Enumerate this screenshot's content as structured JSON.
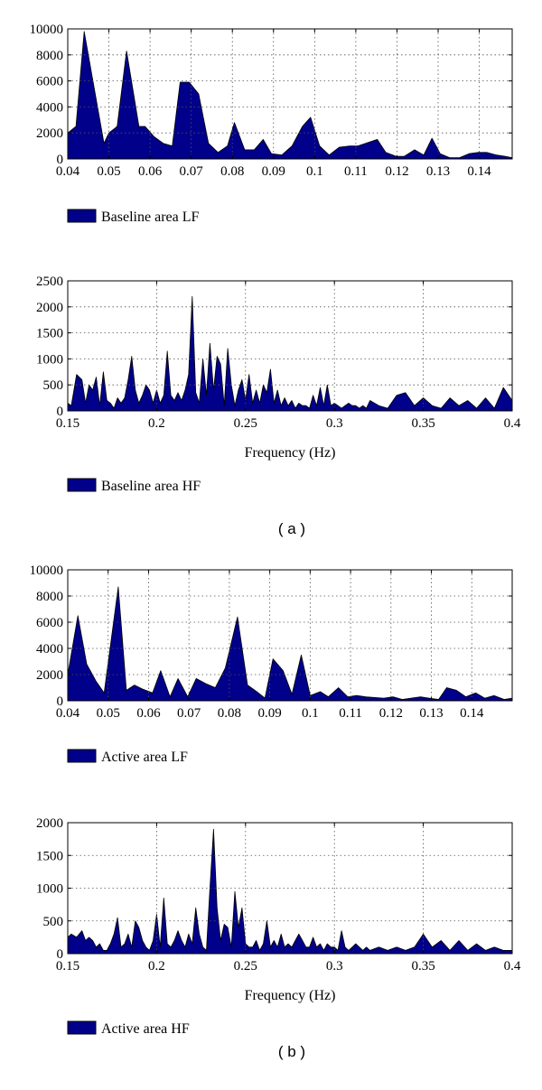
{
  "colors": {
    "fill": "#00008b",
    "stroke": "#000000",
    "grid": "#555555",
    "background": "#ffffff"
  },
  "panel_labels": [
    "( a )",
    "( b )"
  ],
  "chart_data": [
    {
      "type": "area",
      "title": "",
      "xlabel": "",
      "ylabel": "",
      "xlim": [
        0.04,
        0.148
      ],
      "ylim": [
        0,
        10000
      ],
      "xticks": [
        0.04,
        0.05,
        0.06,
        0.07,
        0.08,
        0.09,
        0.1,
        0.11,
        0.12,
        0.13,
        0.14
      ],
      "xtick_labels": [
        "0.04",
        "0.05",
        "0.06",
        "0.07",
        "0.08",
        "0.09",
        "0.1",
        "0.11",
        "0.12",
        "0.13",
        "0.14"
      ],
      "yticks": [
        0,
        2000,
        4000,
        6000,
        8000,
        10000
      ],
      "ytick_labels": [
        "0",
        "2000",
        "4000",
        "6000",
        "8000",
        "10000"
      ],
      "grid": true,
      "legend": "below",
      "series": [
        {
          "name": "Baseline area LF",
          "x": [
            0.04,
            0.042,
            0.044,
            0.0488,
            0.05,
            0.052,
            0.0543,
            0.0573,
            0.0588,
            0.061,
            0.0632,
            0.0654,
            0.0673,
            0.0695,
            0.0718,
            0.0742,
            0.0765,
            0.0788,
            0.0805,
            0.083,
            0.0853,
            0.0875,
            0.0895,
            0.092,
            0.0945,
            0.097,
            0.099,
            0.1012,
            0.1035,
            0.106,
            0.1085,
            0.1105,
            0.1152,
            0.1173,
            0.1198,
            0.1218,
            0.1243,
            0.1265,
            0.1285,
            0.1305,
            0.1328,
            0.1352,
            0.1375,
            0.1398,
            0.1418,
            0.1442,
            0.1463,
            0.148
          ],
          "y": [
            2000,
            2500,
            9800,
            1200,
            2000,
            2500,
            8300,
            2500,
            2500,
            1700,
            1200,
            1000,
            5900,
            5900,
            5000,
            1200,
            500,
            1000,
            2800,
            700,
            700,
            1500,
            400,
            300,
            1000,
            2500,
            3200,
            1000,
            300,
            900,
            1000,
            1000,
            1500,
            500,
            200,
            200,
            700,
            300,
            1600,
            400,
            100,
            100,
            400,
            500,
            500,
            300,
            200,
            100
          ]
        }
      ]
    },
    {
      "type": "area",
      "title": "",
      "xlabel": "Frequency (Hz)",
      "ylabel": "",
      "xlim": [
        0.15,
        0.4
      ],
      "ylim": [
        0,
        2500
      ],
      "xticks": [
        0.15,
        0.2,
        0.25,
        0.3,
        0.35,
        0.4
      ],
      "xtick_labels": [
        "0.15",
        "0.2",
        "0.25",
        "0.3",
        "0.35",
        "0.4"
      ],
      "yticks": [
        0,
        500,
        1000,
        1500,
        2000,
        2500
      ],
      "ytick_labels": [
        "0",
        "500",
        "1000",
        "1500",
        "2000",
        "2500"
      ],
      "grid": true,
      "legend": "below",
      "series": [
        {
          "name": "Baseline area HF",
          "x": [
            0.15,
            0.152,
            0.155,
            0.158,
            0.16,
            0.162,
            0.164,
            0.166,
            0.168,
            0.17,
            0.172,
            0.174,
            0.176,
            0.178,
            0.18,
            0.182,
            0.184,
            0.186,
            0.188,
            0.19,
            0.192,
            0.194,
            0.196,
            0.198,
            0.2,
            0.202,
            0.204,
            0.206,
            0.208,
            0.21,
            0.212,
            0.214,
            0.216,
            0.218,
            0.22,
            0.222,
            0.224,
            0.226,
            0.228,
            0.23,
            0.232,
            0.234,
            0.236,
            0.238,
            0.24,
            0.242,
            0.244,
            0.246,
            0.248,
            0.25,
            0.252,
            0.254,
            0.256,
            0.258,
            0.26,
            0.262,
            0.264,
            0.266,
            0.268,
            0.27,
            0.272,
            0.274,
            0.276,
            0.278,
            0.28,
            0.282,
            0.284,
            0.286,
            0.288,
            0.29,
            0.292,
            0.294,
            0.296,
            0.298,
            0.3,
            0.302,
            0.304,
            0.306,
            0.308,
            0.31,
            0.312,
            0.314,
            0.316,
            0.318,
            0.32,
            0.325,
            0.33,
            0.335,
            0.34,
            0.345,
            0.35,
            0.355,
            0.36,
            0.365,
            0.37,
            0.375,
            0.38,
            0.385,
            0.39,
            0.395,
            0.4
          ],
          "y": [
            150,
            100,
            700,
            600,
            150,
            500,
            400,
            650,
            100,
            750,
            200,
            150,
            50,
            250,
            150,
            250,
            600,
            1050,
            400,
            150,
            300,
            500,
            400,
            150,
            400,
            150,
            300,
            1150,
            300,
            200,
            350,
            200,
            400,
            700,
            2200,
            350,
            150,
            1000,
            300,
            1300,
            400,
            1050,
            900,
            100,
            1200,
            500,
            100,
            400,
            600,
            200,
            700,
            150,
            400,
            150,
            500,
            350,
            800,
            150,
            400,
            100,
            250,
            100,
            200,
            50,
            150,
            100,
            100,
            50,
            300,
            100,
            450,
            100,
            500,
            100,
            150,
            100,
            50,
            100,
            150,
            100,
            100,
            50,
            100,
            50,
            200,
            100,
            50,
            300,
            350,
            100,
            250,
            100,
            50,
            250,
            100,
            200,
            50,
            250,
            50,
            450,
            200
          ]
        }
      ]
    },
    {
      "type": "area",
      "title": "",
      "xlabel": "",
      "ylabel": "",
      "xlim": [
        0.04,
        0.15
      ],
      "ylim": [
        0,
        10000
      ],
      "xticks": [
        0.04,
        0.05,
        0.06,
        0.07,
        0.08,
        0.09,
        0.1,
        0.11,
        0.12,
        0.13,
        0.14
      ],
      "xtick_labels": [
        "0.04",
        "0.05",
        "0.06",
        "0.07",
        "0.08",
        "0.09",
        "0.1",
        "0.11",
        "0.12",
        "0.13",
        "0.14"
      ],
      "yticks": [
        0,
        2000,
        4000,
        6000,
        8000,
        10000
      ],
      "ytick_labels": [
        "0",
        "2000",
        "4000",
        "6000",
        "8000",
        "10000"
      ],
      "grid": true,
      "legend": "below",
      "series": [
        {
          "name": "Active area LF",
          "x": [
            0.04,
            0.0425,
            0.0447,
            0.047,
            0.049,
            0.0525,
            0.0545,
            0.0565,
            0.0585,
            0.061,
            0.063,
            0.0653,
            0.0673,
            0.0697,
            0.0718,
            0.0742,
            0.0765,
            0.079,
            0.082,
            0.0845,
            0.0868,
            0.0888,
            0.0908,
            0.0933,
            0.0955,
            0.0978,
            0.1,
            0.1025,
            0.1045,
            0.107,
            0.1093,
            0.1115,
            0.1138,
            0.1182,
            0.1205,
            0.1228,
            0.1273,
            0.1295,
            0.1318,
            0.1338,
            0.1362,
            0.1385,
            0.141,
            0.1432,
            0.1455,
            0.148,
            0.15
          ],
          "y": [
            2000,
            6500,
            2800,
            1500,
            600,
            8700,
            800,
            1200,
            900,
            600,
            2300,
            300,
            1700,
            300,
            1700,
            1300,
            1000,
            2500,
            6400,
            1200,
            700,
            200,
            3200,
            2300,
            500,
            3500,
            400,
            700,
            300,
            1000,
            300,
            400,
            300,
            200,
            300,
            100,
            300,
            200,
            100,
            1000,
            800,
            300,
            600,
            200,
            400,
            100,
            200
          ]
        }
      ]
    },
    {
      "type": "area",
      "title": "",
      "xlabel": "Frequency (Hz)",
      "ylabel": "",
      "xlim": [
        0.15,
        0.4
      ],
      "ylim": [
        0,
        2000
      ],
      "xticks": [
        0.15,
        0.2,
        0.25,
        0.3,
        0.35,
        0.4
      ],
      "xtick_labels": [
        "0.15",
        "0.2",
        "0.25",
        "0.3",
        "0.35",
        "0.4"
      ],
      "yticks": [
        0,
        500,
        1000,
        1500,
        2000
      ],
      "ytick_labels": [
        "0",
        "500",
        "1000",
        "1500",
        "2000"
      ],
      "grid": true,
      "legend": "below",
      "series": [
        {
          "name": "Active area HF",
          "x": [
            0.15,
            0.152,
            0.155,
            0.158,
            0.16,
            0.162,
            0.164,
            0.166,
            0.168,
            0.17,
            0.172,
            0.174,
            0.176,
            0.178,
            0.18,
            0.182,
            0.184,
            0.186,
            0.188,
            0.19,
            0.192,
            0.194,
            0.196,
            0.198,
            0.2,
            0.202,
            0.204,
            0.206,
            0.208,
            0.21,
            0.212,
            0.214,
            0.216,
            0.218,
            0.22,
            0.222,
            0.224,
            0.226,
            0.228,
            0.23,
            0.232,
            0.234,
            0.236,
            0.238,
            0.24,
            0.242,
            0.244,
            0.246,
            0.248,
            0.25,
            0.252,
            0.254,
            0.256,
            0.258,
            0.26,
            0.262,
            0.264,
            0.266,
            0.268,
            0.27,
            0.272,
            0.274,
            0.276,
            0.278,
            0.28,
            0.282,
            0.284,
            0.286,
            0.288,
            0.29,
            0.292,
            0.294,
            0.296,
            0.298,
            0.3,
            0.302,
            0.304,
            0.306,
            0.308,
            0.31,
            0.312,
            0.314,
            0.316,
            0.318,
            0.32,
            0.325,
            0.33,
            0.335,
            0.34,
            0.345,
            0.35,
            0.355,
            0.36,
            0.365,
            0.37,
            0.375,
            0.38,
            0.385,
            0.39,
            0.395,
            0.4
          ],
          "y": [
            250,
            300,
            250,
            350,
            200,
            250,
            200,
            100,
            150,
            50,
            50,
            150,
            300,
            550,
            100,
            150,
            300,
            100,
            500,
            400,
            200,
            100,
            50,
            200,
            600,
            100,
            850,
            150,
            100,
            200,
            350,
            200,
            100,
            300,
            150,
            700,
            300,
            100,
            50,
            1000,
            1900,
            700,
            200,
            450,
            400,
            100,
            950,
            400,
            700,
            150,
            100,
            100,
            200,
            50,
            150,
            500,
            100,
            200,
            100,
            300,
            100,
            150,
            100,
            200,
            300,
            200,
            100,
            100,
            250,
            100,
            150,
            50,
            150,
            100,
            100,
            50,
            350,
            100,
            50,
            100,
            150,
            100,
            50,
            100,
            50,
            100,
            50,
            100,
            50,
            100,
            300,
            100,
            200,
            50,
            200,
            50,
            150,
            50,
            100,
            50,
            50
          ]
        }
      ]
    }
  ]
}
